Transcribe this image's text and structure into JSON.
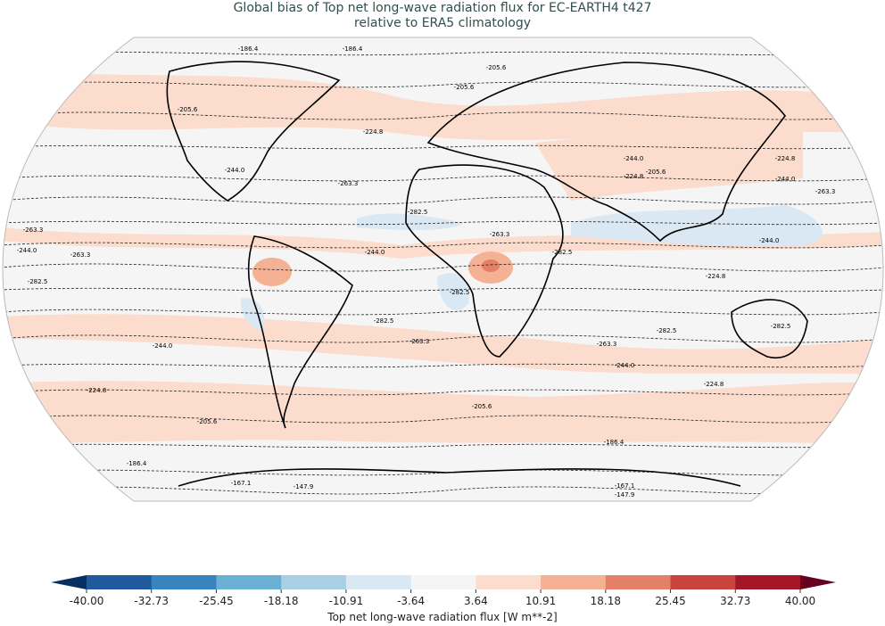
{
  "title": {
    "line1": "Global bias of Top net long-wave radiation flux for EC-EARTH4 t427",
    "line2": "relative to ERA5 climatology"
  },
  "map": {
    "projection": "Robinson",
    "background_color": "#f5f5f5",
    "contour_labels": [
      "-186.4",
      "-186.4",
      "-205.6",
      "-205.6",
      "-205.6",
      "-224.8",
      "-224.8",
      "-244.0",
      "-244.0",
      "-263.3",
      "-263.3",
      "-224.8",
      "-244.0",
      "-205.6",
      "-282.5",
      "-263.3",
      "-282.5",
      "-263.3",
      "-244.0",
      "-263.3",
      "-282.5",
      "-244.0",
      "-282.5",
      "-282.5",
      "-282.5",
      "-282.5",
      "-263.3",
      "-263.3",
      "-244.0",
      "-244.0",
      "-224.8",
      "-224.8",
      "-205.6",
      "-205.6",
      "-186.4",
      "-186.4",
      "-167.1",
      "-147.9",
      "-167.1",
      "-147.9",
      "-244.0",
      "-224.8"
    ]
  },
  "colorbar": {
    "label": "Top net long-wave radiation flux [W m**-2]",
    "ticks": [
      "-40.00",
      "-32.73",
      "-25.45",
      "-18.18",
      "-10.91",
      "-3.64",
      "3.64",
      "10.91",
      "18.18",
      "25.45",
      "32.73",
      "40.00"
    ],
    "colors": [
      "#1f5a9e",
      "#3884bf",
      "#6aafd4",
      "#a9cfe5",
      "#d9e8f2",
      "#f5f5f5",
      "#fbdccd",
      "#f5b193",
      "#e47f68",
      "#c9443f",
      "#a31628"
    ],
    "under_color": "#053061",
    "over_color": "#67001f",
    "extend": "both"
  }
}
